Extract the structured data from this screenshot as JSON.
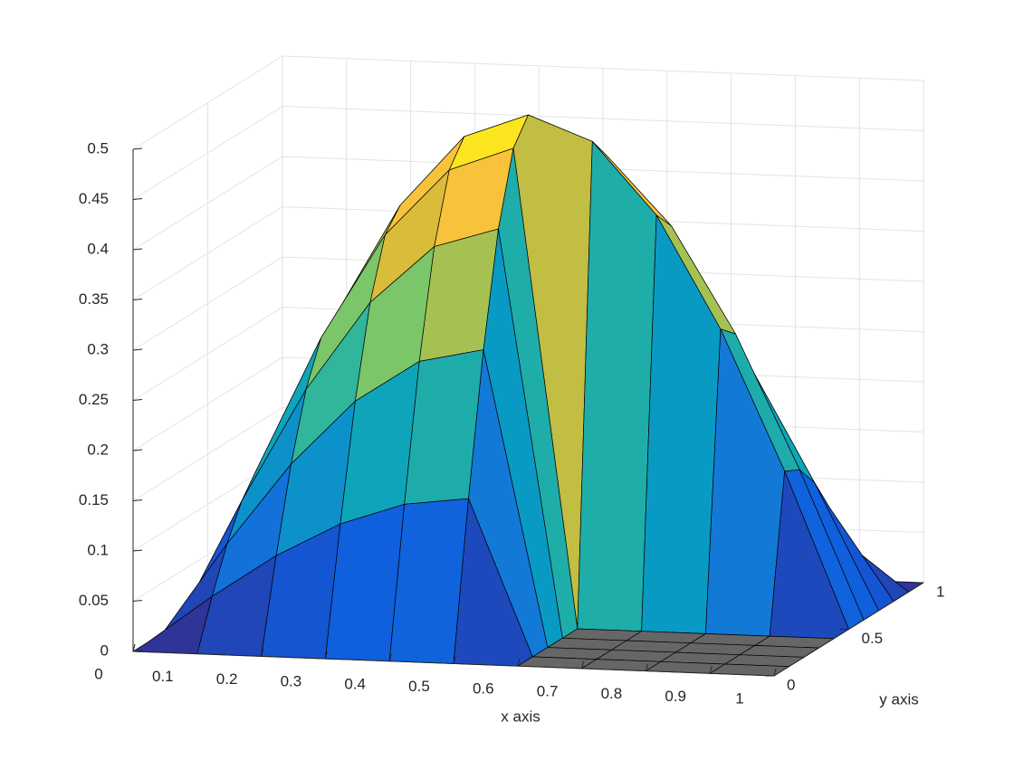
{
  "chart_data": {
    "type": "surface",
    "colormap": "parula",
    "x_label": "x axis",
    "y_label": "y axis",
    "x": [
      0,
      0.1,
      0.2,
      0.3,
      0.4,
      0.5,
      0.6,
      0.7,
      0.8,
      0.9,
      1
    ],
    "y": [
      0,
      0.1,
      0.2,
      0.3,
      0.4,
      0.5,
      0.6,
      0.7,
      0.8,
      0.9,
      1
    ],
    "z": [
      [
        0,
        0,
        0,
        0,
        0,
        0,
        0,
        0,
        0,
        0,
        0
      ],
      [
        0,
        0.048,
        0.091,
        0.125,
        0.147,
        0.155,
        0,
        0,
        0,
        0,
        0
      ],
      [
        0,
        0.091,
        0.173,
        0.238,
        0.28,
        0.294,
        0,
        0,
        0,
        0,
        0
      ],
      [
        0,
        0.125,
        0.238,
        0.327,
        0.385,
        0.405,
        0,
        0,
        0,
        0,
        0
      ],
      [
        0,
        0.147,
        0.28,
        0.385,
        0.452,
        0.476,
        0,
        0,
        0,
        0,
        0
      ],
      [
        0,
        0.155,
        0.294,
        0.405,
        0.476,
        0.5,
        0.476,
        0.405,
        0.294,
        0.155,
        0
      ],
      [
        0,
        0.147,
        0.28,
        0.385,
        0.452,
        0.476,
        0.452,
        0.385,
        0.28,
        0.147,
        0
      ],
      [
        0,
        0.125,
        0.238,
        0.327,
        0.385,
        0.405,
        0.385,
        0.327,
        0.238,
        0.125,
        0
      ],
      [
        0,
        0.091,
        0.173,
        0.238,
        0.28,
        0.294,
        0.28,
        0.238,
        0.173,
        0.091,
        0
      ],
      [
        0,
        0.048,
        0.091,
        0.125,
        0.147,
        0.155,
        0.147,
        0.125,
        0.091,
        0.048,
        0
      ],
      [
        0,
        0,
        0,
        0,
        0,
        0,
        0,
        0,
        0,
        0,
        0
      ]
    ],
    "xlim": [
      0,
      1
    ],
    "ylim": [
      0,
      1
    ],
    "zlim": [
      0,
      0.5
    ],
    "xticks": [
      0,
      0.1,
      0.2,
      0.3,
      0.4,
      0.5,
      0.6,
      0.7,
      0.8,
      0.9,
      1
    ],
    "yticks": [
      0,
      0.5,
      1
    ],
    "zticks": [
      0,
      0.05,
      0.1,
      0.15,
      0.2,
      0.25,
      0.3,
      0.35,
      0.4,
      0.45,
      0.5
    ],
    "grid": true
  }
}
